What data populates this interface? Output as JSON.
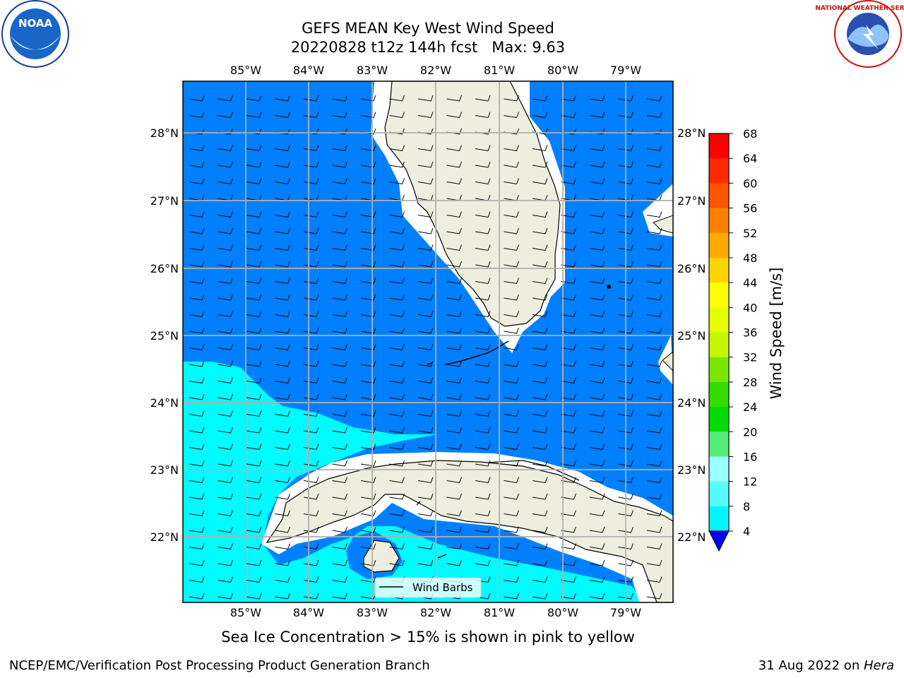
{
  "header": {
    "title_line1": "GEFS MEAN Key West Wind Speed",
    "title_line2": "20220828 t12z 144h fcst   Max: 9.63"
  },
  "map": {
    "lon_ticks": [
      "85°W",
      "84°W",
      "83°W",
      "82°W",
      "81°W",
      "80°W",
      "79°W"
    ],
    "lat_ticks": [
      "28°N",
      "27°N",
      "26°N",
      "25°N",
      "24°N",
      "23°N",
      "22°N"
    ],
    "colors": {
      "ocean_low": "#00fbff",
      "ocean_mid": "#0080ff",
      "land": "#eeeede",
      "grid": "#b0b0b0"
    },
    "legend_label": "Wind Barbs"
  },
  "colorbar": {
    "title": "Wind Speed [m/s]",
    "ticks": [
      "68",
      "64",
      "60",
      "56",
      "52",
      "48",
      "44",
      "40",
      "36",
      "32",
      "28",
      "24",
      "20",
      "16",
      "12",
      "8",
      "4"
    ],
    "colors": [
      "#ff0000",
      "#ff2a00",
      "#ff5500",
      "#ff8000",
      "#ffaa00",
      "#ffd500",
      "#ffff00",
      "#e6ff00",
      "#c8f500",
      "#7ae600",
      "#33dd00",
      "#00dd00",
      "#55ee77",
      "#99ffff",
      "#55fbff",
      "#00f5ff",
      "#0066ff"
    ],
    "extend_color": "#0000ff"
  },
  "footer": {
    "note": "Sea Ice Concentration > 15% is shown in pink to yellow",
    "credit": "NCEP/EMC/Verification Post Processing Product Generation Branch",
    "date": "31 Aug 2022 on ",
    "machine": "Hera"
  },
  "logos": {
    "noaa": "NOAA",
    "nws": "NATIONAL WEATHER SERVICE"
  }
}
